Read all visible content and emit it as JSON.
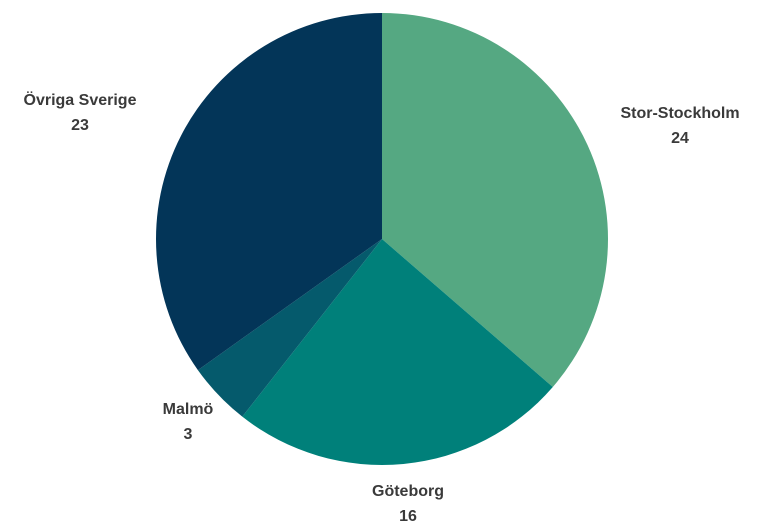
{
  "chart_data": {
    "type": "pie",
    "slices": [
      {
        "label": "Stor-Stockholm",
        "value": 24,
        "value_label": "24",
        "color": "#55a882"
      },
      {
        "label": "Göteborg",
        "value": 16,
        "value_label": "16",
        "color": "#00807a"
      },
      {
        "label": "Malmö",
        "value": 3,
        "value_label": "3",
        "color": "#055a6c"
      },
      {
        "label": "Övriga Sverige",
        "value": 23,
        "value_label": "23",
        "color": "#033558"
      }
    ],
    "start": "12 o'clock",
    "direction": "clockwise",
    "legend": "none"
  }
}
